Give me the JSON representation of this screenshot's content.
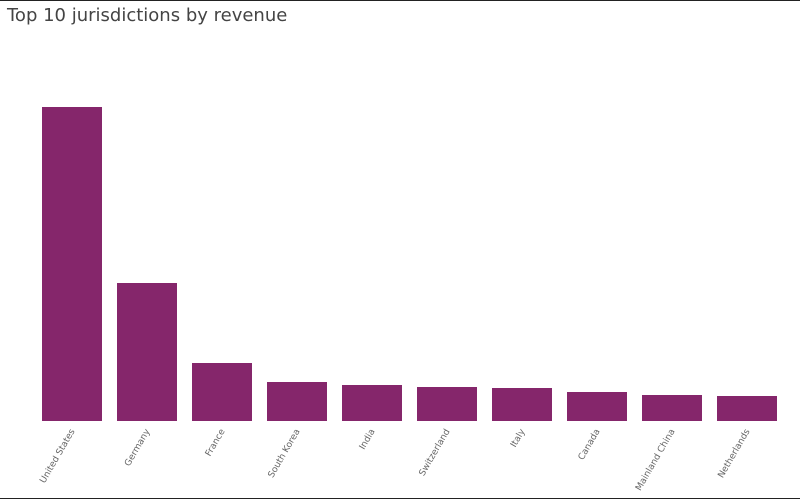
{
  "chart_data": {
    "type": "bar",
    "title": "Top 10 jurisdictions by revenue",
    "categories": [
      "United States",
      "Germany",
      "France",
      "South Korea",
      "India",
      "Switzerland",
      "Italy",
      "Canada",
      "Mainland China",
      "Netherlands"
    ],
    "values": [
      314,
      138,
      58,
      39,
      36,
      34,
      33,
      29,
      26,
      25
    ],
    "color": "#85266b"
  }
}
